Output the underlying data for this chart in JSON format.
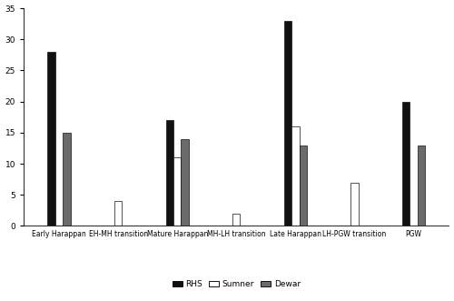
{
  "categories": [
    "Early Harappan",
    "EH-MH transition",
    "Mature Harappan",
    "MH-LH transition",
    "Late Harappan",
    "LH-PGW transition",
    "PGW"
  ],
  "rhs": [
    28,
    0,
    17,
    0,
    33,
    0,
    20
  ],
  "sumner": [
    0,
    4,
    11,
    2,
    16,
    7,
    0
  ],
  "dewar": [
    15,
    0,
    14,
    0,
    13,
    0,
    13
  ],
  "rhs_color": "#111111",
  "sumner_color": "#ffffff",
  "dewar_color": "#6b6b6b",
  "bar_edge_color": "#111111",
  "ylim": [
    0,
    35
  ],
  "yticks": [
    0,
    5,
    10,
    15,
    20,
    25,
    30,
    35
  ],
  "legend_labels": [
    "RHS",
    "Sumner",
    "Dewar"
  ],
  "background_color": "#ffffff",
  "bar_width": 0.13,
  "figwidth": 5.0,
  "figheight": 3.31
}
